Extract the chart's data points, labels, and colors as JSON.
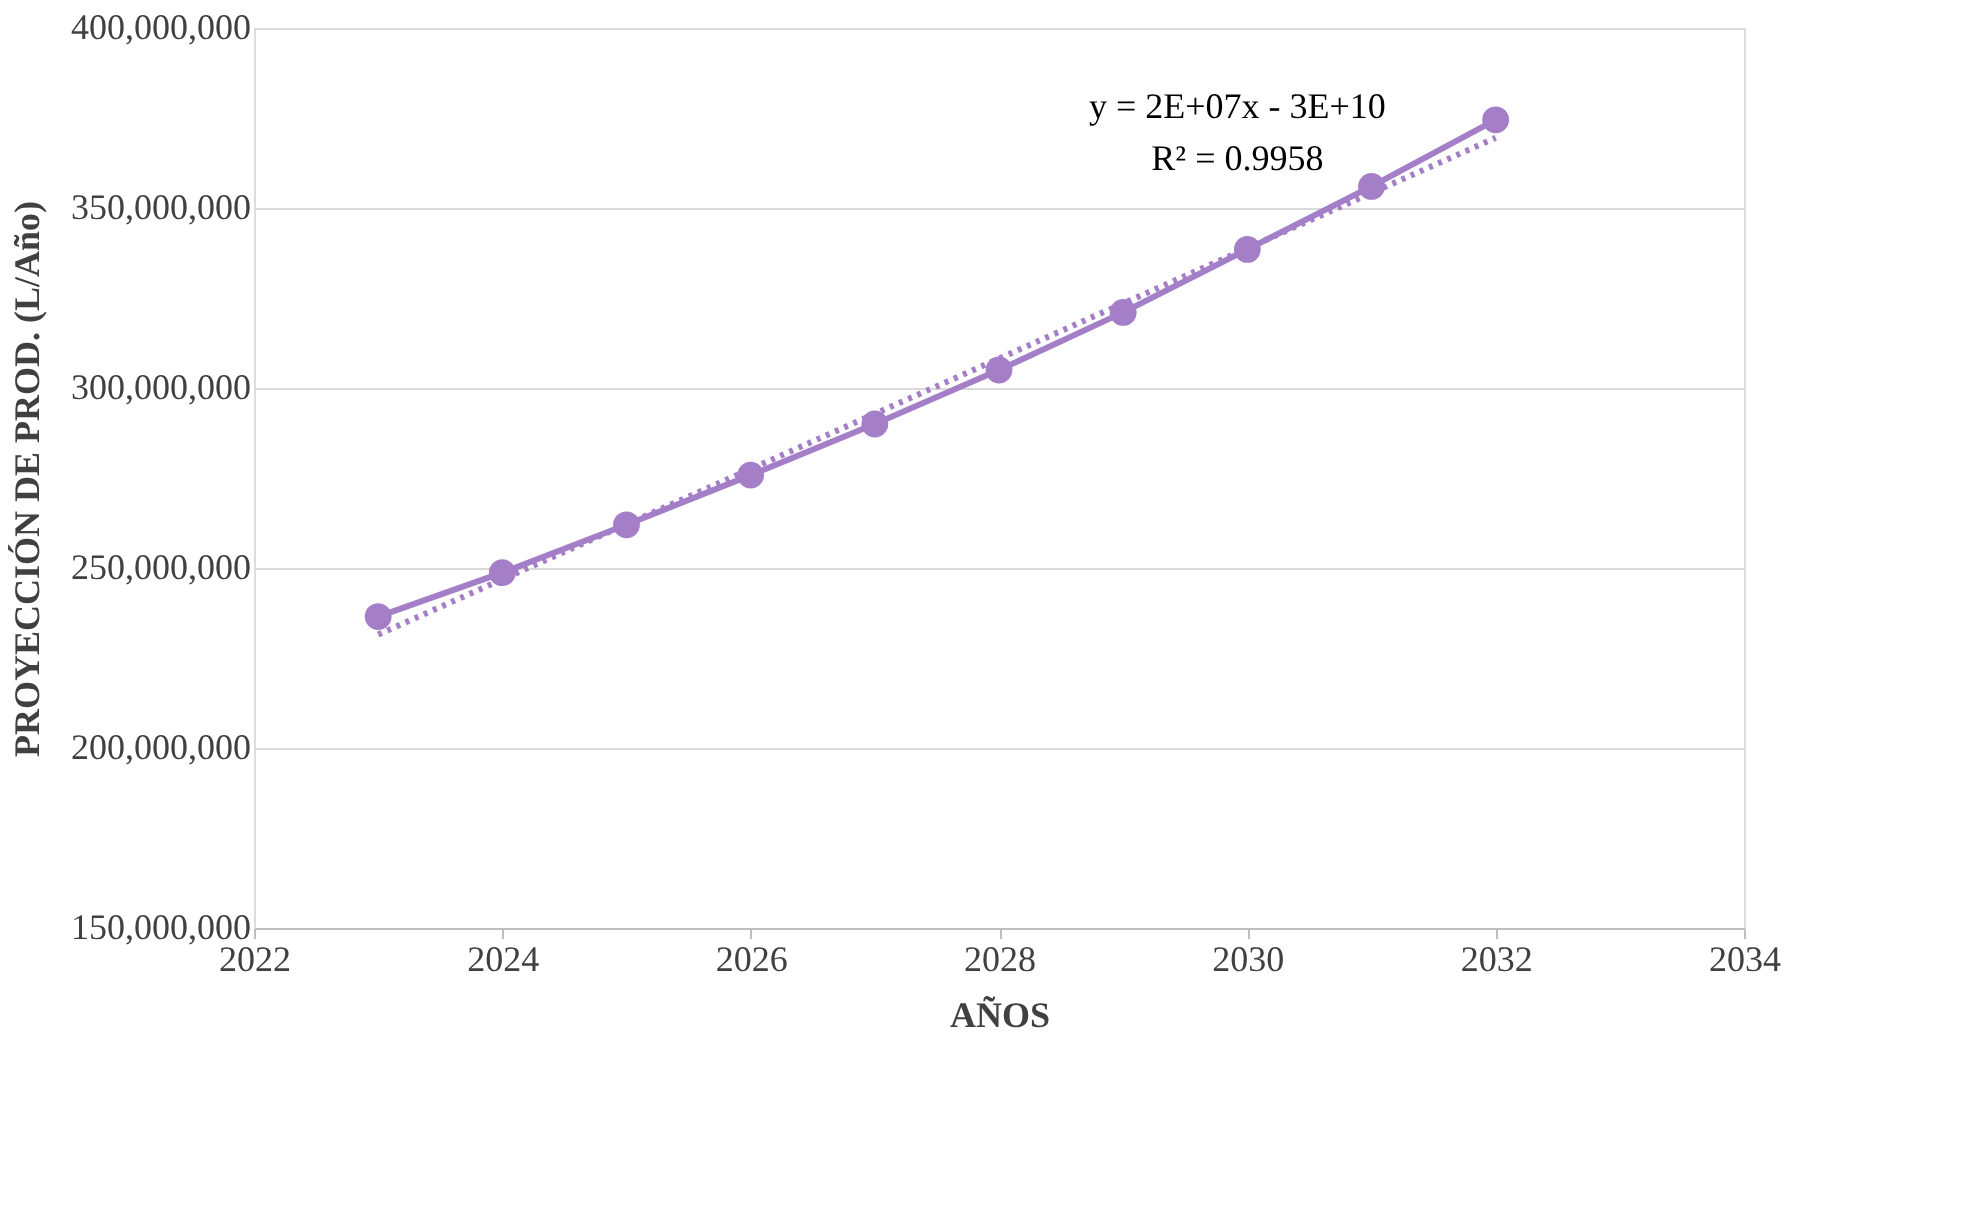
{
  "chart_data": {
    "type": "line",
    "xlabel": "AÑOS",
    "ylabel": "PROYECCIÓN DE PROD. (L/Año)",
    "x": [
      2023,
      2024,
      2025,
      2026,
      2027,
      2028,
      2029,
      2030,
      2031,
      2032
    ],
    "series": [
      {
        "color": "#a47fc8",
        "values": [
          236500000,
          248700000,
          262000000,
          275800000,
          290000000,
          305000000,
          321000000,
          338500000,
          356000000,
          374500000
        ],
        "marker": "circle",
        "line_style": "solid"
      },
      {
        "type": "line",
        "color": "#a47fc8",
        "x": [
          2023,
          2032
        ],
        "values": [
          231500000,
          369500000
        ],
        "marker": "none",
        "line_style": "dotted"
      }
    ],
    "xlim": [
      2022,
      2034
    ],
    "xticks": [
      2022,
      2024,
      2026,
      2028,
      2030,
      2032,
      2034
    ],
    "ylim": [
      150000000,
      400000000
    ],
    "yticks": [
      {
        "value": 150000000,
        "label": "150,000,000"
      },
      {
        "value": 200000000,
        "label": "200,000,000"
      },
      {
        "value": 250000000,
        "label": "250,000,000"
      },
      {
        "value": 300000000,
        "label": "300,000,000"
      },
      {
        "value": 350000000,
        "label": "350,000,000"
      },
      {
        "value": 400000000,
        "label": "400,000,000"
      }
    ],
    "grid": "y",
    "annotations": [
      "y = 2E+07x - 3E+10",
      "R² = 0.9958"
    ]
  }
}
